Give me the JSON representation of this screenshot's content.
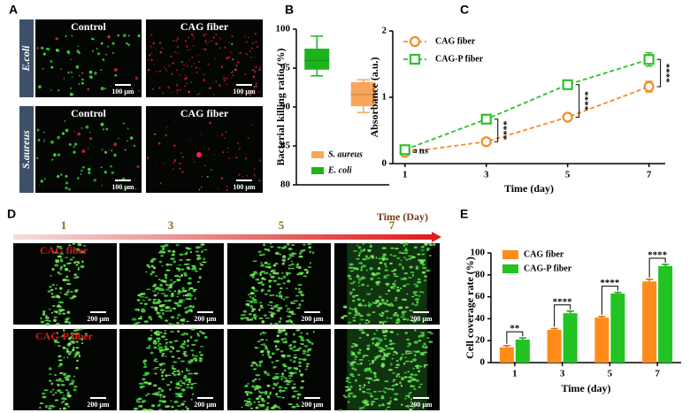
{
  "panel_labels": [
    "A",
    "B",
    "C",
    "D",
    "E"
  ],
  "panel_a": {
    "columns": [
      "Control",
      "CAG fiber"
    ],
    "rows": [
      "E.coli",
      "S.aureus"
    ],
    "scale_bar": "100 μm"
  },
  "panel_d": {
    "days": [
      "1",
      "3",
      "5",
      "7"
    ],
    "axis_label": "Time (Day)",
    "rows": [
      "CAG fiber",
      "CAG-P fiber"
    ],
    "scale_bar": "200 μm"
  },
  "chart_data": [
    {
      "type": "box",
      "ylabel": "Bacterial killing ratio (%)",
      "ylim": [
        80,
        100
      ],
      "yticks": [
        80,
        85,
        90,
        95,
        100
      ],
      "series": [
        {
          "name": "E. coli",
          "color": "#1db31d",
          "min": 94.0,
          "q1": 94.8,
          "median": 96.0,
          "q3": 97.5,
          "max": 99.1
        },
        {
          "name": "S. aureus",
          "color": "#f9a65a",
          "min": 89.3,
          "q1": 90.1,
          "median": 91.6,
          "q3": 93.2,
          "max": 93.5
        }
      ]
    },
    {
      "type": "line",
      "xlabel": "Time (day)",
      "ylabel": "Absorbance (a.u.)",
      "x": [
        1,
        3,
        5,
        7
      ],
      "xlim": [
        0.7,
        7.4
      ],
      "xticks": [
        1,
        3,
        5,
        7
      ],
      "ylim": [
        0,
        2
      ],
      "yticks": [
        0,
        1,
        2
      ],
      "series": [
        {
          "name": "CAG fiber",
          "color": "#f28c28",
          "marker": "circle",
          "values": [
            0.17,
            0.33,
            0.7,
            1.16
          ],
          "errors": [
            0.03,
            0.03,
            0.03,
            0.08
          ]
        },
        {
          "name": "CAG-P fiber",
          "color": "#2fbf2f",
          "marker": "square",
          "values": [
            0.21,
            0.67,
            1.19,
            1.57
          ],
          "errors": [
            0.03,
            0.04,
            0.02,
            0.1
          ]
        }
      ],
      "annotations": [
        "ns",
        "****",
        "****",
        "****"
      ]
    },
    {
      "type": "bar",
      "xlabel": "Time (day)",
      "ylabel": "Cell coverage rate (%)",
      "categories": [
        "1",
        "3",
        "5",
        "7"
      ],
      "ylim": [
        0,
        100
      ],
      "yticks": [
        0,
        20,
        40,
        60,
        80,
        100
      ],
      "series": [
        {
          "name": "CAG fiber",
          "color": "#ff8c1a",
          "values": [
            14,
            30,
            41,
            74
          ],
          "errors": [
            1.5,
            1,
            1,
            2
          ]
        },
        {
          "name": "CAG-P fiber",
          "color": "#22c322",
          "values": [
            21,
            45,
            63,
            88
          ],
          "errors": [
            1.5,
            2,
            1,
            1.5
          ]
        }
      ],
      "annotations": [
        "**",
        "****",
        "****",
        "****"
      ]
    }
  ]
}
